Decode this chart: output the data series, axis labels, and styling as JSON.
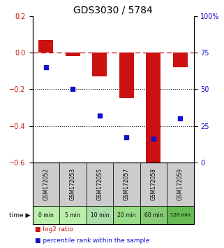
{
  "title": "GDS3030 / 5784",
  "samples": [
    "GSM172052",
    "GSM172053",
    "GSM172055",
    "GSM172057",
    "GSM172058",
    "GSM172059"
  ],
  "time_labels": [
    "0 min",
    "5 min",
    "10 min",
    "20 min",
    "60 min",
    "120 min"
  ],
  "log2_ratio": [
    0.07,
    -0.02,
    -0.13,
    -0.25,
    -0.62,
    -0.08
  ],
  "percentile_rank": [
    65,
    50,
    32,
    17,
    16,
    30
  ],
  "bar_color": "#cc1111",
  "dot_color": "#1111cc",
  "left_ylim": [
    -0.6,
    0.2
  ],
  "right_ylim": [
    0,
    100
  ],
  "left_yticks": [
    -0.6,
    -0.4,
    -0.2,
    0.0,
    0.2
  ],
  "right_yticks": [
    0,
    25,
    50,
    75,
    100
  ],
  "hline_dotted": [
    -0.2,
    -0.4
  ],
  "hline_dashed": 0.0,
  "bg_color": "#ffffff",
  "legend_red_label": "log2 ratio",
  "legend_blue_label": "percentile rank within the sample",
  "time_row_colors": [
    "#bbeeaa",
    "#bbeeaa",
    "#aaddaa",
    "#99dd88",
    "#88cc77",
    "#66bb55"
  ],
  "sample_row_color": "#cccccc",
  "title_fontsize": 10,
  "tick_fontsize": 7,
  "bar_width": 0.55
}
